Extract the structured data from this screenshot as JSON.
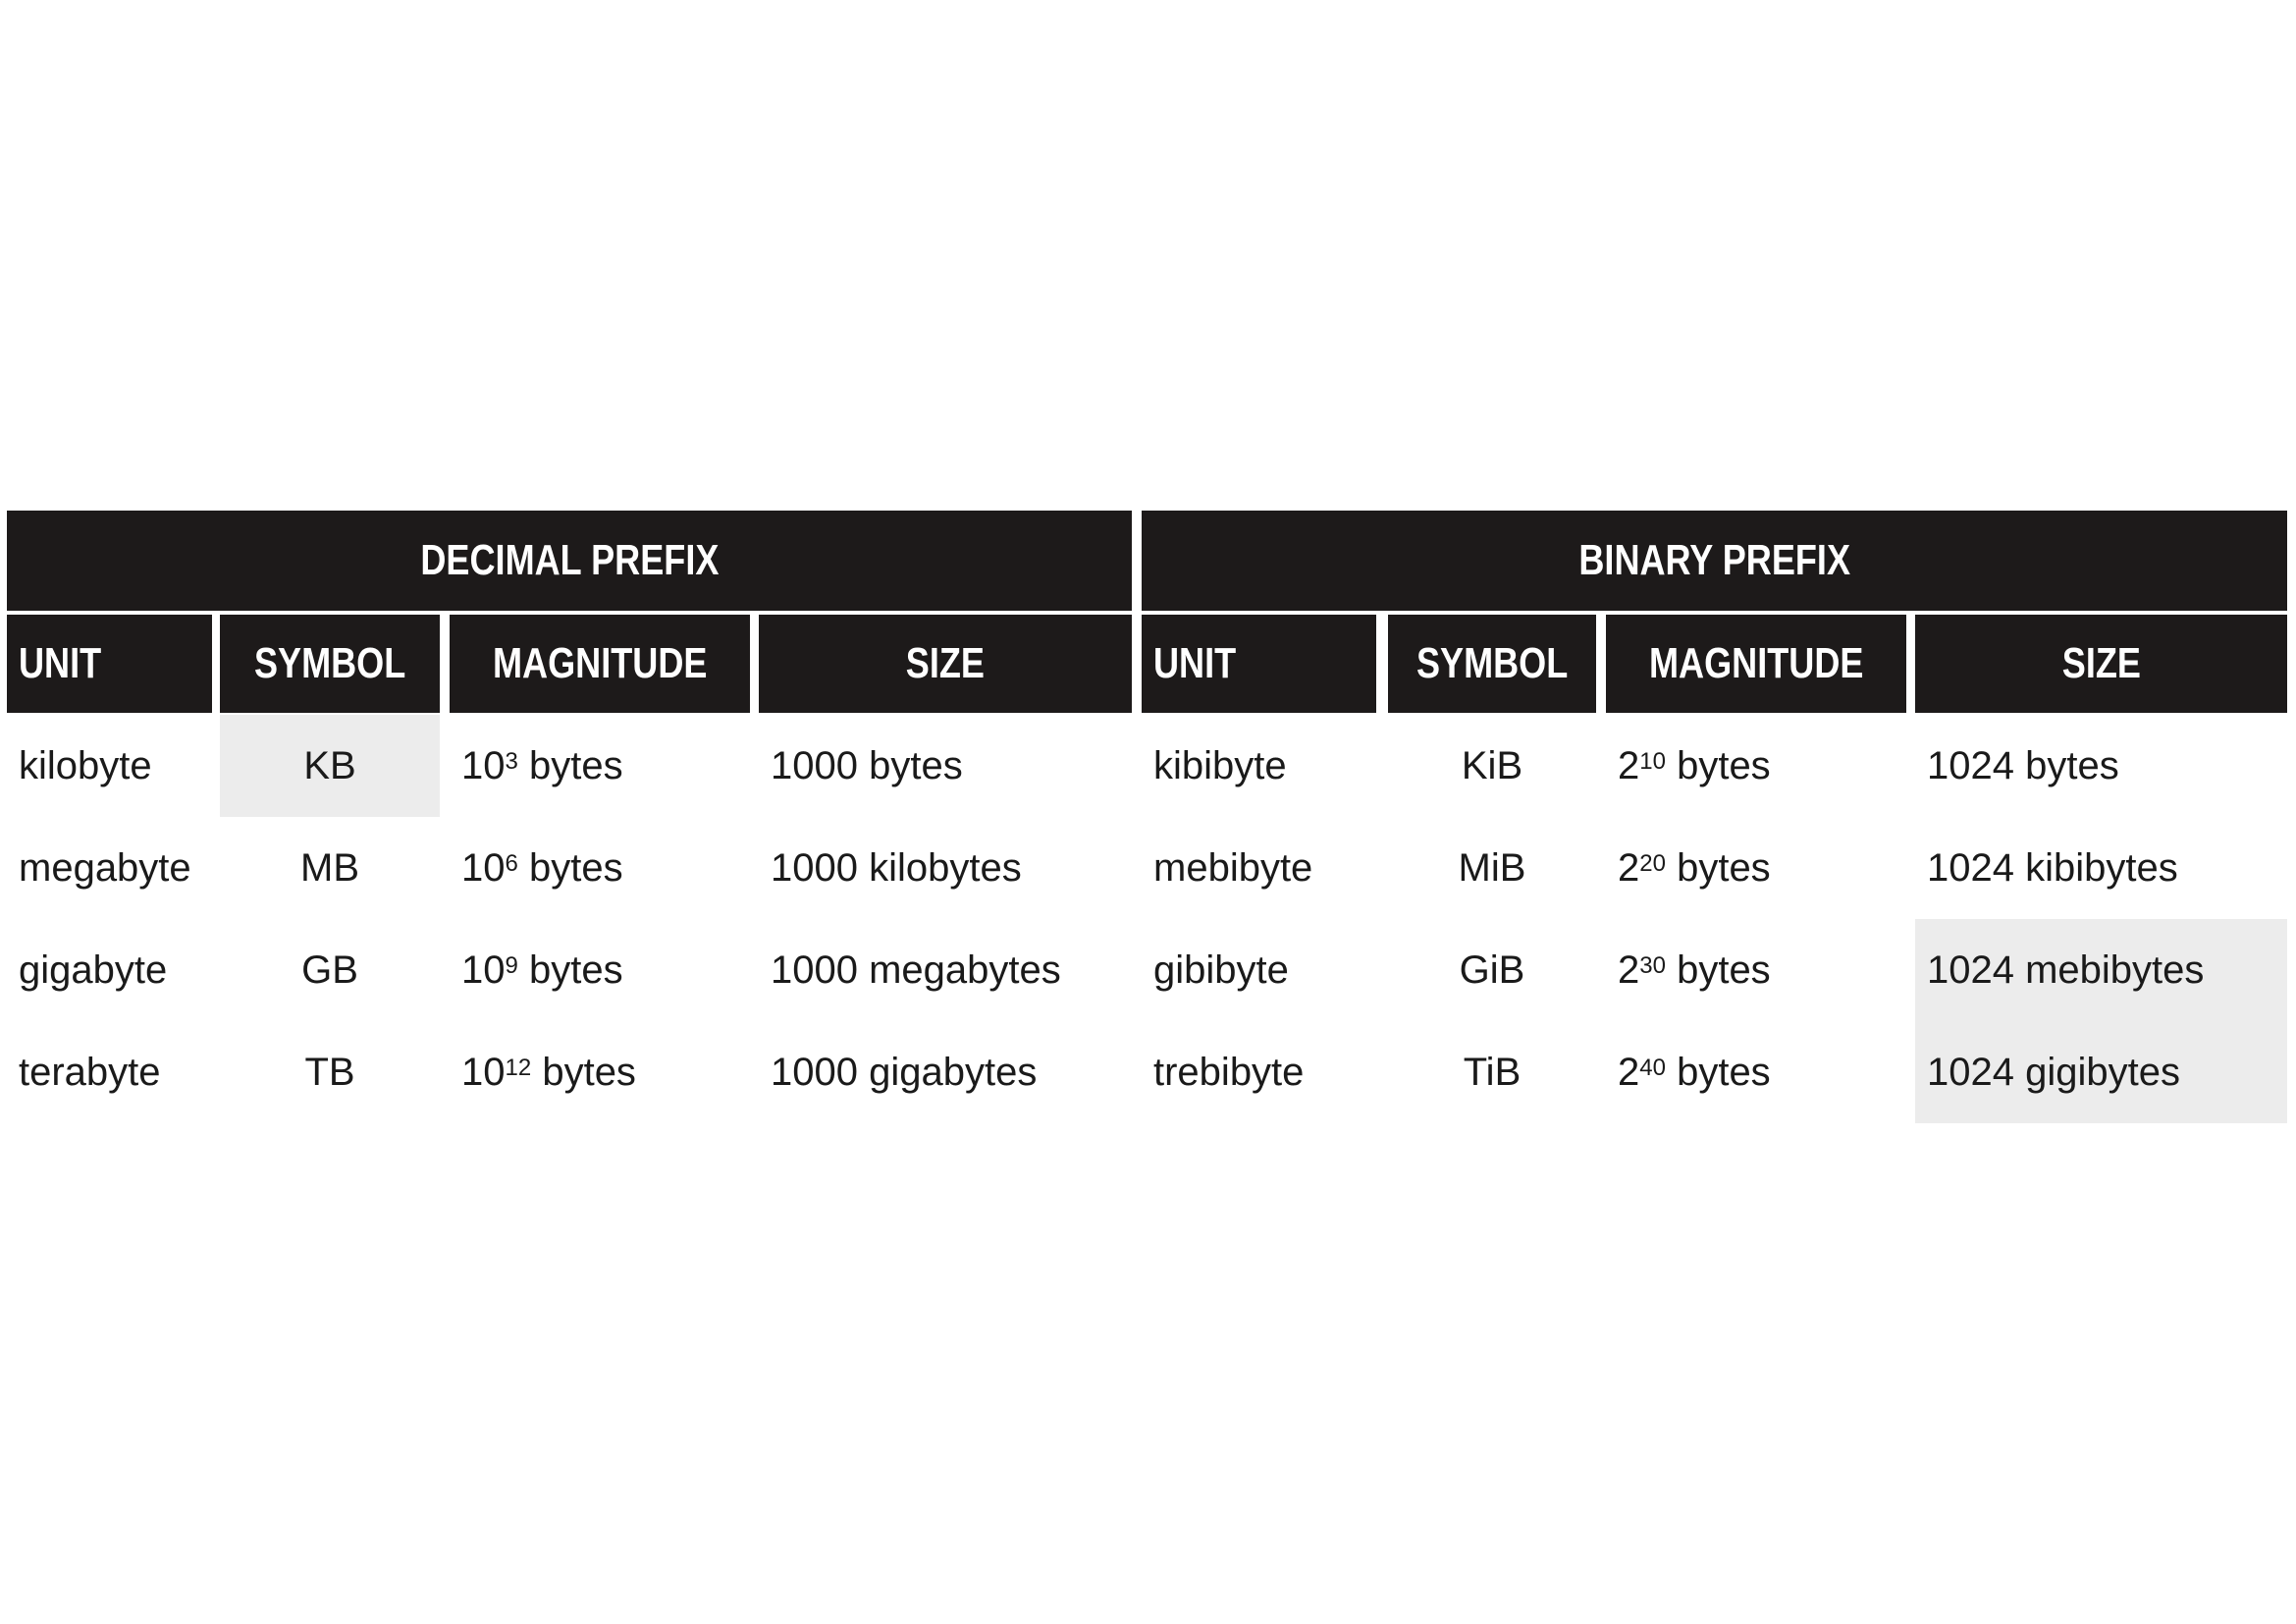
{
  "decimal": {
    "title": "DECIMAL PREFIX",
    "headers": [
      "UNIT",
      "SYMBOL",
      "MAGNITUDE",
      "SIZE"
    ],
    "rows": [
      {
        "unit": "kilobyte",
        "symbol": "KB",
        "base": "10",
        "exp": "3",
        "mag_unit": "bytes",
        "size": "1000 bytes"
      },
      {
        "unit": "megabyte",
        "symbol": "MB",
        "base": "10",
        "exp": "6",
        "mag_unit": "bytes",
        "size": "1000 kilobytes"
      },
      {
        "unit": "gigabyte",
        "symbol": "GB",
        "base": "10",
        "exp": "9",
        "mag_unit": "bytes",
        "size": "1000 megabytes"
      },
      {
        "unit": "terabyte",
        "symbol": "TB",
        "base": "10",
        "exp": "12",
        "mag_unit": "bytes",
        "size": "1000 gigabytes"
      }
    ]
  },
  "binary": {
    "title": "BINARY PREFIX",
    "headers": [
      "UNIT",
      "SYMBOL",
      "MAGNITUDE",
      "SIZE"
    ],
    "rows": [
      {
        "unit": "kibibyte",
        "symbol": "KiB",
        "base": "2",
        "exp": "10",
        "mag_unit": "bytes",
        "size": "1024 bytes"
      },
      {
        "unit": "mebibyte",
        "symbol": "MiB",
        "base": "2",
        "exp": "20",
        "mag_unit": "bytes",
        "size": "1024 kibibytes"
      },
      {
        "unit": "gibibyte",
        "symbol": "GiB",
        "base": "2",
        "exp": "30",
        "mag_unit": "bytes",
        "size": "1024 mebibytes"
      },
      {
        "unit": "trebibyte",
        "symbol": "TiB",
        "base": "2",
        "exp": "40",
        "mag_unit": "bytes",
        "size": "1024 gigibytes"
      }
    ]
  }
}
